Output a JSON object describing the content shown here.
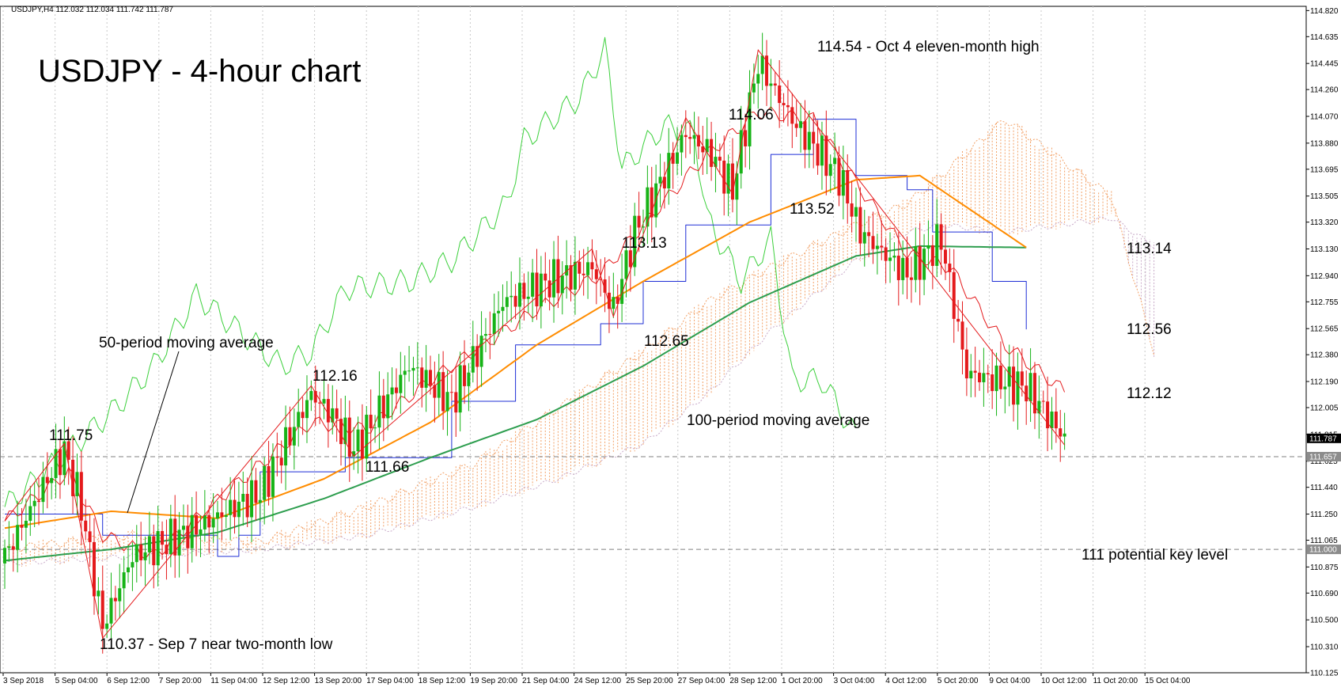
{
  "header": {
    "symbol_line": "USDJPY,H4  112.032 112.034 111.742 111.787"
  },
  "chart_data": {
    "type": "candlestick",
    "title": "USDJPY - 4-hour chart",
    "timeframe": "H4",
    "ylim": [
      110.125,
      114.85
    ],
    "y_ticks": [
      "114.820",
      "114.635",
      "114.445",
      "114.260",
      "114.070",
      "113.880",
      "113.695",
      "113.505",
      "113.320",
      "113.130",
      "112.940",
      "112.755",
      "112.565",
      "112.380",
      "112.190",
      "112.005",
      "111.815",
      "111.625",
      "111.440",
      "111.250",
      "111.065",
      "110.875",
      "110.690",
      "110.500",
      "110.310",
      "110.125"
    ],
    "x_ticks": [
      "3 Sep 2018",
      "5 Sep 04:00",
      "6 Sep 12:00",
      "7 Sep 20:00",
      "11 Sep 04:00",
      "12 Sep 12:00",
      "13 Sep 20:00",
      "17 Sep 04:00",
      "18 Sep 12:00",
      "19 Sep 20:00",
      "21 Sep 04:00",
      "24 Sep 12:00",
      "25 Sep 20:00",
      "27 Sep 04:00",
      "28 Sep 12:00",
      "1 Oct 20:00",
      "3 Oct 04:00",
      "4 Oct 12:00",
      "5 Oct 20:00",
      "9 Oct 04:00",
      "10 Oct 12:00",
      "11 Oct 20:00",
      "15 Oct 04:00"
    ],
    "current_price": {
      "value": 111.787,
      "label": "111.787"
    },
    "horizontal_levels": [
      {
        "value": 111.657,
        "label": "111.657",
        "style": "dashed"
      },
      {
        "value": 111.0,
        "label": "111.000",
        "style": "dashed"
      }
    ],
    "annotations": [
      {
        "text": "111.75",
        "value": 111.75
      },
      {
        "text": "110.37 - Sep 7 near two-month low",
        "value": 110.37
      },
      {
        "text": "112.16",
        "value": 112.16
      },
      {
        "text": "111.66",
        "value": 111.66
      },
      {
        "text": "113.13",
        "value": 113.13
      },
      {
        "text": "112.65",
        "value": 112.65
      },
      {
        "text": "114.06",
        "value": 114.06
      },
      {
        "text": "113.52",
        "value": 113.52
      },
      {
        "text": "114.54 - Oct 4 eleven-month high",
        "value": 114.54
      },
      {
        "text": "113.14",
        "value": 113.14
      },
      {
        "text": "112.56",
        "value": 112.56
      },
      {
        "text": "112.12",
        "value": 112.12
      },
      {
        "text": "111 potential key level",
        "value": 111.0
      },
      {
        "text": "50-period moving average"
      },
      {
        "text": "100-period moving average"
      }
    ],
    "swing_points": [
      [
        0,
        111.2
      ],
      [
        14,
        111.75
      ],
      [
        23,
        110.37
      ],
      [
        72,
        112.16
      ],
      [
        82,
        111.66
      ],
      [
        138,
        113.13
      ],
      [
        143,
        112.65
      ],
      [
        160,
        114.06
      ],
      [
        171,
        113.52
      ],
      [
        177,
        114.54
      ],
      [
        249,
        111.74
      ]
    ],
    "series": [
      {
        "name": "price",
        "key_points": [
          [
            0,
            110.95
          ],
          [
            10,
            111.5
          ],
          [
            14,
            111.7
          ],
          [
            18,
            111.3
          ],
          [
            23,
            110.45
          ],
          [
            30,
            110.95
          ],
          [
            45,
            111.15
          ],
          [
            60,
            111.4
          ],
          [
            72,
            112.1
          ],
          [
            77,
            111.95
          ],
          [
            82,
            111.7
          ],
          [
            95,
            112.3
          ],
          [
            105,
            112.05
          ],
          [
            117,
            112.75
          ],
          [
            128,
            112.9
          ],
          [
            138,
            113.0
          ],
          [
            143,
            112.7
          ],
          [
            148,
            113.25
          ],
          [
            160,
            113.95
          ],
          [
            166,
            113.8
          ],
          [
            171,
            113.55
          ],
          [
            177,
            114.45
          ],
          [
            186,
            114.0
          ],
          [
            196,
            113.65
          ],
          [
            201,
            113.25
          ],
          [
            212,
            112.95
          ],
          [
            220,
            113.2
          ],
          [
            226,
            112.25
          ],
          [
            240,
            112.15
          ],
          [
            249,
            111.79
          ]
        ]
      },
      {
        "name": "MA50",
        "color": "#ff8c00",
        "key_points": [
          [
            0,
            111.15
          ],
          [
            25,
            111.27
          ],
          [
            50,
            111.22
          ],
          [
            75,
            111.5
          ],
          [
            100,
            111.9
          ],
          [
            125,
            112.45
          ],
          [
            150,
            112.9
          ],
          [
            175,
            113.32
          ],
          [
            200,
            113.62
          ],
          [
            215,
            113.65
          ],
          [
            240,
            113.14
          ]
        ]
      },
      {
        "name": "MA100",
        "color": "#2e9e4f",
        "key_points": [
          [
            0,
            110.92
          ],
          [
            25,
            111.0
          ],
          [
            50,
            111.12
          ],
          [
            75,
            111.36
          ],
          [
            100,
            111.65
          ],
          [
            125,
            111.92
          ],
          [
            150,
            112.3
          ],
          [
            175,
            112.75
          ],
          [
            200,
            113.08
          ],
          [
            215,
            113.15
          ],
          [
            240,
            113.14
          ]
        ]
      },
      {
        "name": "Tenkan",
        "color": "#e41a1c",
        "key_points": [
          [
            0,
            111.2
          ],
          [
            15,
            111.55
          ],
          [
            23,
            111.1
          ],
          [
            35,
            110.95
          ],
          [
            50,
            111.35
          ],
          [
            72,
            111.9
          ],
          [
            85,
            111.85
          ],
          [
            100,
            112.2
          ],
          [
            125,
            112.7
          ],
          [
            140,
            112.95
          ],
          [
            150,
            113.3
          ],
          [
            165,
            113.8
          ],
          [
            177,
            114.1
          ],
          [
            190,
            114.05
          ],
          [
            200,
            113.6
          ],
          [
            212,
            113.1
          ],
          [
            222,
            113.0
          ],
          [
            235,
            112.45
          ],
          [
            249,
            112.12
          ]
        ]
      },
      {
        "name": "Kijun",
        "color": "#1f2fd6",
        "key_points": [
          [
            0,
            111.25
          ],
          [
            20,
            111.25
          ],
          [
            23,
            111.1
          ],
          [
            45,
            111.1
          ],
          [
            50,
            110.95
          ],
          [
            55,
            111.1
          ],
          [
            60,
            111.55
          ],
          [
            80,
            111.65
          ],
          [
            105,
            112.05
          ],
          [
            120,
            112.45
          ],
          [
            140,
            112.6
          ],
          [
            150,
            112.9
          ],
          [
            160,
            113.3
          ],
          [
            175,
            113.3
          ],
          [
            180,
            113.8
          ],
          [
            190,
            114.05
          ],
          [
            200,
            113.65
          ],
          [
            212,
            113.55
          ],
          [
            218,
            113.25
          ],
          [
            232,
            112.9
          ],
          [
            240,
            112.56
          ]
        ]
      },
      {
        "name": "Chikou",
        "color": "#3cd03c",
        "key_points": [
          [
            0,
            111.3
          ],
          [
            15,
            111.7
          ],
          [
            26,
            112.0
          ],
          [
            35,
            112.3
          ],
          [
            45,
            112.8
          ],
          [
            55,
            112.55
          ],
          [
            65,
            112.3
          ],
          [
            72,
            112.4
          ],
          [
            80,
            112.85
          ],
          [
            95,
            112.9
          ],
          [
            105,
            113.05
          ],
          [
            118,
            113.45
          ],
          [
            122,
            113.9
          ],
          [
            135,
            114.2
          ],
          [
            141,
            114.55
          ],
          [
            145,
            113.7
          ],
          [
            155,
            114.0
          ],
          [
            162,
            113.95
          ],
          [
            165,
            113.35
          ],
          [
            173,
            112.9
          ],
          [
            180,
            113.2
          ],
          [
            185,
            112.2
          ],
          [
            192,
            112.2
          ],
          [
            200,
            111.8
          ]
        ]
      },
      {
        "name": "Senkou A",
        "color": "#f2a065",
        "key_points": [
          [
            0,
            111.0
          ],
          [
            30,
            111.1
          ],
          [
            60,
            111.05
          ],
          [
            85,
            111.3
          ],
          [
            110,
            111.6
          ],
          [
            130,
            112.0
          ],
          [
            150,
            112.4
          ],
          [
            165,
            112.75
          ],
          [
            180,
            113.0
          ],
          [
            200,
            113.3
          ],
          [
            212,
            113.45
          ],
          [
            220,
            113.65
          ],
          [
            235,
            114.05
          ],
          [
            260,
            113.5
          ],
          [
            270,
            112.4
          ]
        ]
      },
      {
        "name": "Senkou B",
        "color": "#c8a9c8",
        "key_points": [
          [
            0,
            110.9
          ],
          [
            30,
            110.95
          ],
          [
            60,
            111.0
          ],
          [
            85,
            111.1
          ],
          [
            110,
            111.3
          ],
          [
            130,
            111.5
          ],
          [
            150,
            111.75
          ],
          [
            165,
            112.1
          ],
          [
            180,
            112.55
          ],
          [
            200,
            113.05
          ],
          [
            212,
            113.25
          ],
          [
            220,
            113.3
          ],
          [
            235,
            113.25
          ],
          [
            260,
            113.35
          ],
          [
            270,
            113.15
          ]
        ]
      }
    ]
  }
}
